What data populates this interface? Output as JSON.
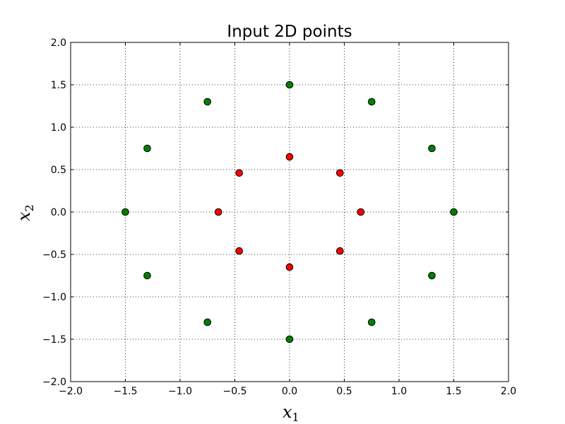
{
  "chart_data": {
    "type": "scatter",
    "title": "Input 2D points",
    "xlabel": "x",
    "xlabel_sub": "1",
    "ylabel": "x",
    "ylabel_sub": "2",
    "xlim": [
      -2.0,
      2.0
    ],
    "ylim": [
      -2.0,
      2.0
    ],
    "xticks": [
      -2.0,
      -1.5,
      -1.0,
      -0.5,
      0.0,
      0.5,
      1.0,
      1.5,
      2.0
    ],
    "yticks": [
      -2.0,
      -1.5,
      -1.0,
      -0.5,
      0.0,
      0.5,
      1.0,
      1.5,
      2.0
    ],
    "xtick_labels": [
      "−2.0",
      "−1.5",
      "−1.0",
      "−0.5",
      "0.0",
      "0.5",
      "1.0",
      "1.5",
      "2.0"
    ],
    "ytick_labels": [
      "−2.0",
      "−1.5",
      "−1.0",
      "−0.5",
      "0.0",
      "0.5",
      "1.0",
      "1.5",
      "2.0"
    ],
    "grid": true,
    "series": [
      {
        "color": "#ff0000",
        "points": [
          [
            0.65,
            0.0
          ],
          [
            0.46,
            0.46
          ],
          [
            0.0,
            0.65
          ],
          [
            -0.46,
            0.46
          ],
          [
            -0.65,
            0.0
          ],
          [
            -0.46,
            -0.46
          ],
          [
            0.0,
            -0.65
          ],
          [
            0.46,
            -0.46
          ]
        ]
      },
      {
        "color": "#008000",
        "points": [
          [
            1.5,
            0.0
          ],
          [
            1.3,
            0.75
          ],
          [
            0.75,
            1.3
          ],
          [
            0.0,
            1.5
          ],
          [
            -0.75,
            1.3
          ],
          [
            -1.3,
            0.75
          ],
          [
            -1.5,
            0.0
          ],
          [
            -1.3,
            -0.75
          ],
          [
            -0.75,
            -1.3
          ],
          [
            0.0,
            -1.5
          ],
          [
            0.75,
            -1.3
          ],
          [
            1.3,
            -0.75
          ]
        ]
      }
    ]
  }
}
